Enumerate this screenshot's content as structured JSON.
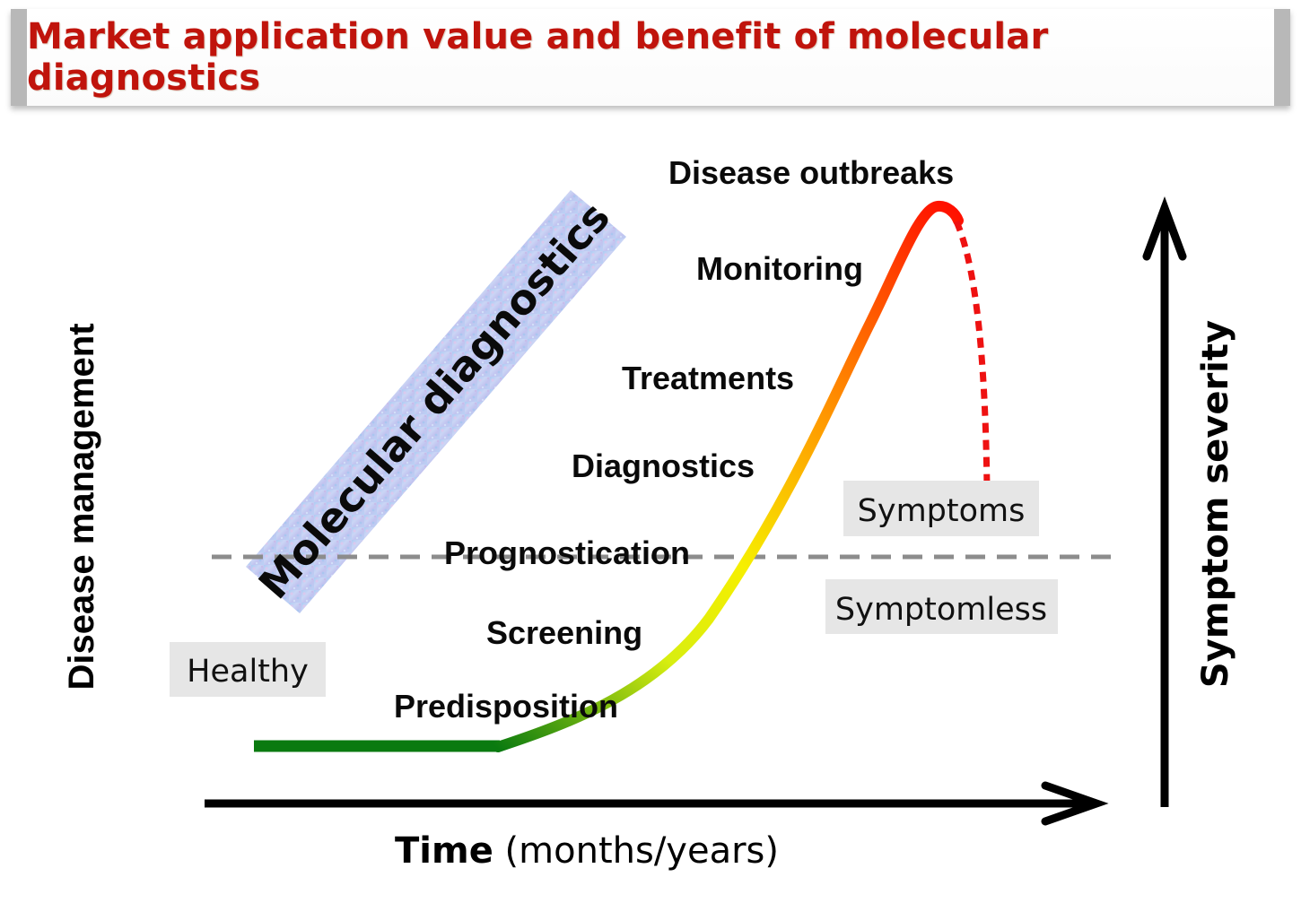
{
  "title": "Market application value and benefit of molecular diagnostics",
  "y_axis_left_label": "Disease management",
  "y_axis_right_label": "Symptom severity",
  "x_axis": {
    "label_bold": "Time",
    "label_normal": " (months/years)"
  },
  "band_label": "Molecular diagnostics",
  "stages": {
    "predisposition": "Predisposition",
    "screening": "Screening",
    "prognostication": "Prognostication",
    "diagnostics": "Diagnostics",
    "treatments": "Treatments",
    "monitoring": "Monitoring",
    "disease_outbreaks": "Disease outbreaks"
  },
  "state_boxes": {
    "healthy": "Healthy",
    "symptoms": "Symptoms",
    "symptomless": "Symptomless"
  },
  "colors": {
    "title": "#c0140c",
    "curve_start": "#0a7a10",
    "curve_mid": "#f2f200",
    "curve_end": "#ff1000",
    "dotted_curve": "#ee1111",
    "threshold_line": "#8c8c8c",
    "state_box_bg": "#e6e6e6"
  }
}
